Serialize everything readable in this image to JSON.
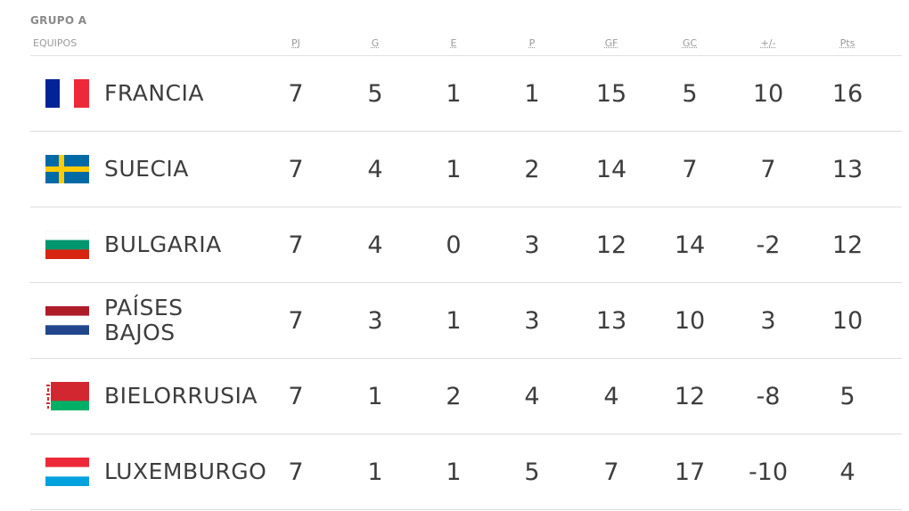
{
  "group": {
    "title": "GRUPO A"
  },
  "header": {
    "team": "EQUIPOS",
    "pj": "PJ",
    "g": "G",
    "e": "E",
    "p": "P",
    "gf": "GF",
    "gc": "GC",
    "dif": "+/-",
    "pts": "Pts"
  },
  "rows": [
    {
      "team": "FRANCIA",
      "flag": "france-flag-icon",
      "pj": "7",
      "g": "5",
      "e": "1",
      "p": "1",
      "gf": "15",
      "gc": "5",
      "dif": "10",
      "pts": "16"
    },
    {
      "team": "SUECIA",
      "flag": "sweden-flag-icon",
      "pj": "7",
      "g": "4",
      "e": "1",
      "p": "2",
      "gf": "14",
      "gc": "7",
      "dif": "7",
      "pts": "13"
    },
    {
      "team": "BULGARIA",
      "flag": "bulgaria-flag-icon",
      "pj": "7",
      "g": "4",
      "e": "0",
      "p": "3",
      "gf": "12",
      "gc": "14",
      "dif": "-2",
      "pts": "12"
    },
    {
      "team": "PAÍSES BAJOS",
      "flag": "netherlands-flag-icon",
      "pj": "7",
      "g": "3",
      "e": "1",
      "p": "3",
      "gf": "13",
      "gc": "10",
      "dif": "3",
      "pts": "10"
    },
    {
      "team": "BIELORRUSIA",
      "flag": "belarus-flag-icon",
      "pj": "7",
      "g": "1",
      "e": "2",
      "p": "4",
      "gf": "4",
      "gc": "12",
      "dif": "-8",
      "pts": "5"
    },
    {
      "team": "LUXEMBURGO",
      "flag": "luxembourg-flag-icon",
      "pj": "7",
      "g": "1",
      "e": "1",
      "p": "5",
      "gf": "7",
      "gc": "17",
      "dif": "-10",
      "pts": "4"
    }
  ],
  "colors": {
    "france": [
      "#002395",
      "#ffffff",
      "#ed2939"
    ],
    "sweden": [
      "#006aa7",
      "#fecc00"
    ],
    "bulgaria": [
      "#ffffff",
      "#00966e",
      "#d62612"
    ],
    "netherlands": [
      "#ae1c28",
      "#ffffff",
      "#21468b"
    ],
    "belarus": [
      "#d22730",
      "#00af66",
      "#ffffff"
    ],
    "luxembourg": [
      "#ed2939",
      "#ffffff",
      "#00a1de"
    ]
  }
}
